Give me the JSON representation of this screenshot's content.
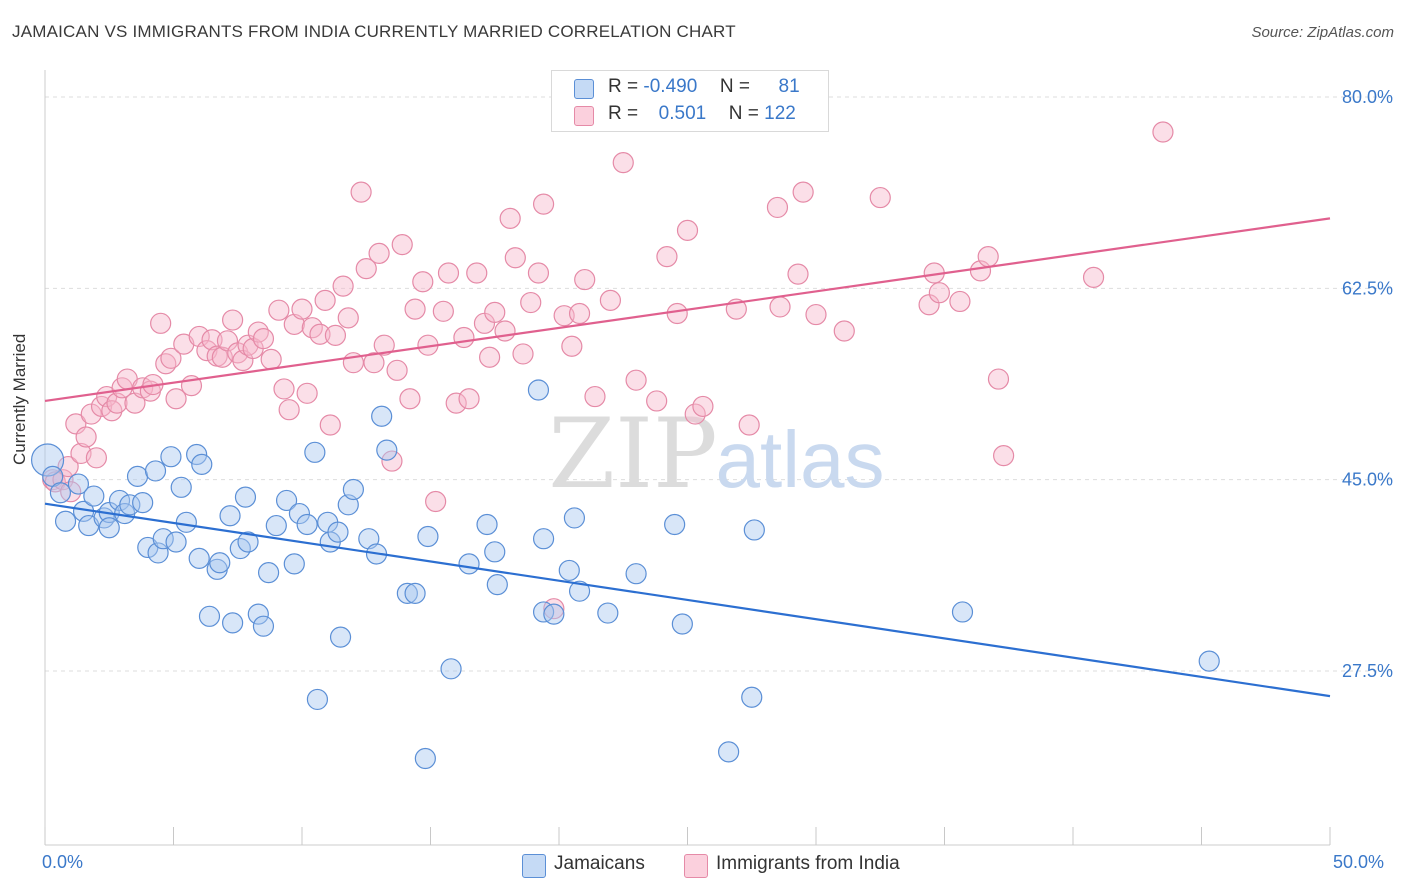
{
  "title": "JAMAICAN VS IMMIGRANTS FROM INDIA CURRENTLY MARRIED CORRELATION CHART",
  "source": "Source: ZipAtlas.com",
  "watermark": {
    "zip": "ZIP",
    "atlas": "atlas"
  },
  "colors": {
    "blue_fill": "#a9c8f0",
    "blue_stroke": "#5b8fd6",
    "blue_line": "#2c6fd1",
    "pink_fill": "#f6b8cb",
    "pink_stroke": "#e58aa7",
    "pink_line": "#e0608e",
    "tick_label": "#3a78c9",
    "grid": "#dddddd"
  },
  "legend": {
    "rows": [
      {
        "r_label": "R =",
        "r_value": "-0.490",
        "n_label": "N =",
        "n_value": "81"
      },
      {
        "r_label": "R =",
        "r_value": "0.501",
        "n_label": "N =",
        "n_value": "122"
      }
    ]
  },
  "chart_data": {
    "type": "scatter",
    "title": "JAMAICAN VS IMMIGRANTS FROM INDIA CURRENTLY MARRIED CORRELATION CHART",
    "xlabel": "",
    "ylabel": "Currently Married",
    "xlim": [
      0,
      50
    ],
    "ylim": [
      10,
      82
    ],
    "x_tick_labels": [
      "0.0%",
      "50.0%"
    ],
    "y_ticks": [
      27.5,
      45.0,
      62.5,
      80.0
    ],
    "y_tick_labels": [
      "27.5%",
      "45.0%",
      "62.5%",
      "80.0%"
    ],
    "grid": "horizontal dashed",
    "legend_position": "top-center",
    "series": [
      {
        "name": "Jamaicans",
        "trend": {
          "x": [
            0,
            50
          ],
          "y": [
            42.8,
            25.2
          ]
        },
        "points": [
          [
            0.1,
            46.8
          ],
          [
            0.3,
            45.3
          ],
          [
            0.6,
            43.8
          ],
          [
            0.8,
            41.2
          ],
          [
            1.3,
            44.6
          ],
          [
            1.5,
            42.1
          ],
          [
            1.9,
            43.5
          ],
          [
            1.7,
            40.8
          ],
          [
            2.3,
            41.5
          ],
          [
            2.5,
            42.0
          ],
          [
            2.5,
            40.6
          ],
          [
            2.9,
            43.1
          ],
          [
            3.1,
            41.9
          ],
          [
            3.3,
            42.7
          ],
          [
            3.6,
            45.3
          ],
          [
            3.8,
            42.9
          ],
          [
            4.0,
            38.8
          ],
          [
            4.3,
            45.8
          ],
          [
            4.4,
            38.3
          ],
          [
            4.6,
            39.6
          ],
          [
            4.9,
            47.1
          ],
          [
            5.1,
            39.3
          ],
          [
            5.3,
            44.3
          ],
          [
            5.5,
            41.1
          ],
          [
            5.9,
            47.3
          ],
          [
            6.0,
            37.8
          ],
          [
            6.1,
            46.4
          ],
          [
            6.4,
            32.5
          ],
          [
            6.7,
            36.8
          ],
          [
            6.8,
            37.4
          ],
          [
            7.2,
            41.7
          ],
          [
            7.3,
            31.9
          ],
          [
            7.6,
            38.7
          ],
          [
            7.8,
            43.4
          ],
          [
            7.9,
            39.3
          ],
          [
            8.3,
            32.7
          ],
          [
            8.5,
            31.6
          ],
          [
            8.7,
            36.5
          ],
          [
            9.0,
            40.8
          ],
          [
            9.4,
            43.1
          ],
          [
            9.7,
            37.3
          ],
          [
            9.9,
            41.9
          ],
          [
            10.2,
            40.9
          ],
          [
            10.5,
            47.5
          ],
          [
            10.6,
            24.9
          ],
          [
            11.0,
            41.1
          ],
          [
            11.1,
            39.3
          ],
          [
            11.4,
            40.2
          ],
          [
            11.5,
            30.6
          ],
          [
            11.8,
            42.7
          ],
          [
            12.0,
            44.1
          ],
          [
            12.6,
            39.6
          ],
          [
            12.9,
            38.2
          ],
          [
            13.1,
            50.8
          ],
          [
            13.3,
            47.7
          ],
          [
            14.1,
            34.6
          ],
          [
            14.4,
            34.6
          ],
          [
            14.8,
            19.5
          ],
          [
            14.9,
            39.8
          ],
          [
            15.8,
            27.7
          ],
          [
            16.5,
            37.3
          ],
          [
            17.2,
            40.9
          ],
          [
            17.5,
            38.4
          ],
          [
            17.6,
            35.4
          ],
          [
            19.2,
            53.2
          ],
          [
            19.4,
            32.9
          ],
          [
            19.4,
            39.6
          ],
          [
            19.8,
            32.7
          ],
          [
            20.4,
            36.7
          ],
          [
            20.6,
            41.5
          ],
          [
            20.8,
            34.8
          ],
          [
            21.9,
            32.8
          ],
          [
            23.0,
            36.4
          ],
          [
            24.5,
            40.9
          ],
          [
            24.8,
            31.8
          ],
          [
            26.6,
            20.1
          ],
          [
            27.5,
            25.1
          ],
          [
            27.6,
            40.4
          ],
          [
            35.7,
            32.9
          ],
          [
            45.3,
            28.4
          ]
        ]
      },
      {
        "name": "Immigrants from India",
        "trend": {
          "x": [
            0,
            50
          ],
          "y": [
            52.2,
            68.9
          ]
        },
        "points": [
          [
            0.3,
            45.0
          ],
          [
            0.4,
            44.8
          ],
          [
            0.7,
            45.0
          ],
          [
            0.9,
            46.2
          ],
          [
            1.0,
            43.9
          ],
          [
            1.2,
            50.1
          ],
          [
            1.4,
            47.4
          ],
          [
            1.6,
            48.9
          ],
          [
            1.8,
            51.0
          ],
          [
            2.0,
            47.0
          ],
          [
            2.2,
            51.7
          ],
          [
            2.4,
            52.6
          ],
          [
            2.6,
            51.3
          ],
          [
            2.8,
            52.0
          ],
          [
            3.0,
            53.4
          ],
          [
            3.2,
            54.2
          ],
          [
            3.5,
            52.0
          ],
          [
            3.8,
            53.4
          ],
          [
            4.1,
            53.1
          ],
          [
            4.2,
            53.7
          ],
          [
            4.5,
            59.3
          ],
          [
            4.7,
            55.6
          ],
          [
            4.9,
            56.1
          ],
          [
            5.1,
            52.4
          ],
          [
            5.4,
            57.4
          ],
          [
            5.7,
            53.6
          ],
          [
            6.0,
            58.1
          ],
          [
            6.3,
            56.8
          ],
          [
            6.5,
            57.8
          ],
          [
            6.7,
            56.3
          ],
          [
            6.9,
            56.2
          ],
          [
            7.1,
            57.7
          ],
          [
            7.3,
            59.6
          ],
          [
            7.5,
            56.6
          ],
          [
            7.7,
            55.9
          ],
          [
            7.9,
            57.3
          ],
          [
            8.1,
            57.0
          ],
          [
            8.3,
            58.5
          ],
          [
            8.5,
            57.9
          ],
          [
            8.8,
            56.0
          ],
          [
            9.1,
            60.5
          ],
          [
            9.3,
            53.3
          ],
          [
            9.5,
            51.4
          ],
          [
            9.7,
            59.2
          ],
          [
            10.0,
            60.6
          ],
          [
            10.2,
            52.9
          ],
          [
            10.4,
            58.9
          ],
          [
            10.7,
            58.3
          ],
          [
            10.9,
            61.4
          ],
          [
            11.1,
            50.0
          ],
          [
            11.3,
            58.2
          ],
          [
            11.6,
            62.7
          ],
          [
            11.8,
            59.8
          ],
          [
            12.0,
            55.7
          ],
          [
            12.3,
            71.3
          ],
          [
            12.5,
            64.3
          ],
          [
            12.8,
            55.7
          ],
          [
            13.0,
            65.7
          ],
          [
            13.2,
            57.3
          ],
          [
            13.5,
            46.7
          ],
          [
            13.7,
            55.0
          ],
          [
            13.9,
            66.5
          ],
          [
            14.2,
            52.4
          ],
          [
            14.4,
            60.6
          ],
          [
            14.7,
            63.1
          ],
          [
            14.9,
            57.3
          ],
          [
            15.2,
            43.0
          ],
          [
            15.5,
            60.4
          ],
          [
            15.7,
            63.9
          ],
          [
            16.0,
            52.0
          ],
          [
            16.3,
            58.0
          ],
          [
            16.5,
            52.4
          ],
          [
            16.8,
            63.9
          ],
          [
            17.1,
            59.3
          ],
          [
            17.3,
            56.2
          ],
          [
            17.5,
            60.3
          ],
          [
            17.9,
            58.6
          ],
          [
            18.1,
            68.9
          ],
          [
            18.3,
            65.3
          ],
          [
            18.6,
            56.5
          ],
          [
            18.9,
            61.2
          ],
          [
            19.2,
            63.9
          ],
          [
            19.4,
            70.2
          ],
          [
            19.8,
            33.2
          ],
          [
            20.2,
            60.0
          ],
          [
            20.5,
            57.2
          ],
          [
            20.8,
            60.2
          ],
          [
            21.0,
            63.3
          ],
          [
            21.4,
            52.6
          ],
          [
            22.0,
            61.4
          ],
          [
            22.5,
            74.0
          ],
          [
            23.0,
            54.1
          ],
          [
            23.8,
            52.2
          ],
          [
            24.2,
            65.4
          ],
          [
            24.6,
            60.2
          ],
          [
            25.0,
            67.8
          ],
          [
            25.3,
            51.0
          ],
          [
            25.6,
            51.7
          ],
          [
            26.9,
            60.6
          ],
          [
            27.4,
            50.0
          ],
          [
            28.5,
            69.9
          ],
          [
            28.6,
            60.8
          ],
          [
            29.3,
            63.8
          ],
          [
            29.5,
            71.3
          ],
          [
            30.0,
            60.1
          ],
          [
            31.1,
            58.6
          ],
          [
            32.5,
            70.8
          ],
          [
            34.4,
            61.0
          ],
          [
            34.6,
            63.9
          ],
          [
            34.8,
            62.1
          ],
          [
            35.6,
            61.3
          ],
          [
            36.4,
            64.1
          ],
          [
            36.7,
            65.4
          ],
          [
            37.1,
            54.2
          ],
          [
            37.3,
            47.2
          ],
          [
            40.8,
            63.5
          ],
          [
            43.5,
            76.8
          ]
        ]
      }
    ]
  }
}
